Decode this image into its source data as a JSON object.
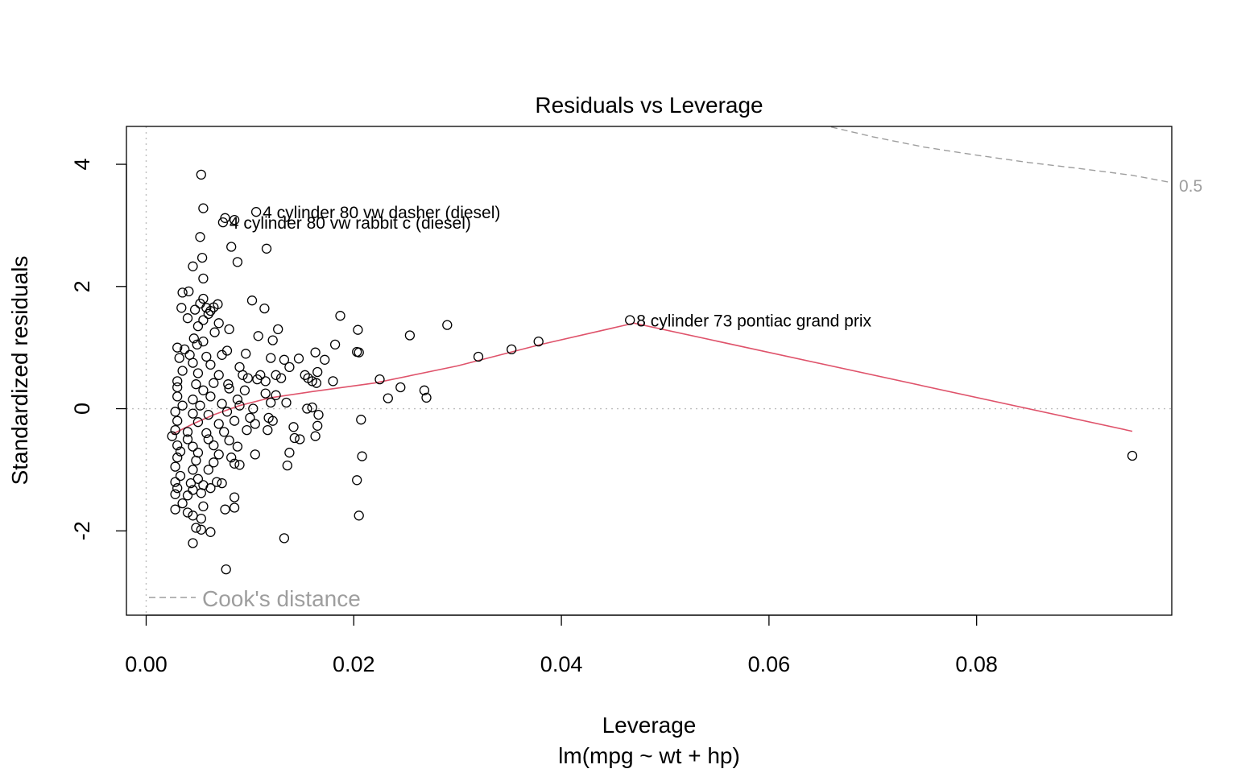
{
  "chart_data": {
    "type": "scatter",
    "title": "Residuals vs Leverage",
    "xlabel": "Leverage",
    "subtitle": "lm(mpg ~ wt + hp)",
    "ylabel": "Standardized residuals",
    "xlim": [
      -0.0019,
      0.0988
    ],
    "ylim": [
      -3.38,
      4.62
    ],
    "x_ticks": [
      0.0,
      0.02,
      0.04,
      0.06,
      0.08
    ],
    "x_tick_labels": [
      "0.00",
      "0.02",
      "0.04",
      "0.06",
      "0.08"
    ],
    "y_ticks": [
      -2,
      0,
      2,
      4
    ],
    "y_tick_labels": [
      "-2",
      "0",
      "2",
      "4"
    ],
    "points": [
      [
        0.0053,
        3.83
      ],
      [
        0.0055,
        3.28
      ],
      [
        0.0076,
        3.12
      ],
      [
        0.0074,
        3.05
      ],
      [
        0.0085,
        3.09
      ],
      [
        0.0106,
        3.22
      ],
      [
        0.0052,
        2.81
      ],
      [
        0.0082,
        2.65
      ],
      [
        0.0116,
        2.62
      ],
      [
        0.0054,
        2.47
      ],
      [
        0.0045,
        2.33
      ],
      [
        0.0088,
        2.4
      ],
      [
        0.0055,
        2.13
      ],
      [
        0.0035,
        1.9
      ],
      [
        0.0041,
        1.92
      ],
      [
        0.0055,
        1.8
      ],
      [
        0.0102,
        1.77
      ],
      [
        0.0052,
        1.72
      ],
      [
        0.0069,
        1.71
      ],
      [
        0.0034,
        1.65
      ],
      [
        0.0047,
        1.62
      ],
      [
        0.0058,
        1.65
      ],
      [
        0.0062,
        1.6
      ],
      [
        0.0065,
        1.66
      ],
      [
        0.006,
        1.55
      ],
      [
        0.0114,
        1.64
      ],
      [
        0.0187,
        1.52
      ],
      [
        0.004,
        1.48
      ],
      [
        0.0055,
        1.45
      ],
      [
        0.007,
        1.4
      ],
      [
        0.005,
        1.35
      ],
      [
        0.008,
        1.3
      ],
      [
        0.0127,
        1.3
      ],
      [
        0.0204,
        1.29
      ],
      [
        0.029,
        1.37
      ],
      [
        0.0254,
        1.2
      ],
      [
        0.0046,
        1.15
      ],
      [
        0.0055,
        1.1
      ],
      [
        0.0066,
        1.25
      ],
      [
        0.0108,
        1.19
      ],
      [
        0.0122,
        1.12
      ],
      [
        0.0049,
        1.05
      ],
      [
        0.003,
        1.0
      ],
      [
        0.0037,
        0.97
      ],
      [
        0.0078,
        0.95
      ],
      [
        0.0096,
        0.9
      ],
      [
        0.0042,
        0.88
      ],
      [
        0.0058,
        0.85
      ],
      [
        0.0073,
        0.88
      ],
      [
        0.012,
        0.83
      ],
      [
        0.0133,
        0.8
      ],
      [
        0.0147,
        0.82
      ],
      [
        0.0163,
        0.92
      ],
      [
        0.0172,
        0.8
      ],
      [
        0.0182,
        1.05
      ],
      [
        0.0203,
        0.93
      ],
      [
        0.0205,
        0.92
      ],
      [
        0.032,
        0.85
      ],
      [
        0.0352,
        0.97
      ],
      [
        0.0378,
        1.1
      ],
      [
        0.0466,
        1.45
      ],
      [
        0.0032,
        0.83
      ],
      [
        0.0045,
        0.75
      ],
      [
        0.0062,
        0.72
      ],
      [
        0.009,
        0.68
      ],
      [
        0.011,
        0.55
      ],
      [
        0.0138,
        0.68
      ],
      [
        0.0153,
        0.55
      ],
      [
        0.0165,
        0.6
      ],
      [
        0.0156,
        0.5
      ],
      [
        0.018,
        0.45
      ],
      [
        0.0035,
        0.62
      ],
      [
        0.005,
        0.58
      ],
      [
        0.007,
        0.55
      ],
      [
        0.0093,
        0.55
      ],
      [
        0.0098,
        0.5
      ],
      [
        0.0115,
        0.45
      ],
      [
        0.0125,
        0.55
      ],
      [
        0.016,
        0.45
      ],
      [
        0.0225,
        0.48
      ],
      [
        0.003,
        0.45
      ],
      [
        0.0048,
        0.4
      ],
      [
        0.0065,
        0.42
      ],
      [
        0.0079,
        0.4
      ],
      [
        0.0107,
        0.48
      ],
      [
        0.013,
        0.5
      ],
      [
        0.0164,
        0.42
      ],
      [
        0.0245,
        0.35
      ],
      [
        0.0268,
        0.3
      ],
      [
        0.027,
        0.18
      ],
      [
        0.0233,
        0.17
      ],
      [
        0.003,
        0.35
      ],
      [
        0.0055,
        0.3
      ],
      [
        0.008,
        0.33
      ],
      [
        0.0095,
        0.3
      ],
      [
        0.0115,
        0.25
      ],
      [
        0.0135,
        0.1
      ],
      [
        0.003,
        0.2
      ],
      [
        0.0045,
        0.15
      ],
      [
        0.0062,
        0.2
      ],
      [
        0.0088,
        0.15
      ],
      [
        0.0125,
        0.22
      ],
      [
        0.0035,
        0.05
      ],
      [
        0.0052,
        0.05
      ],
      [
        0.0073,
        0.08
      ],
      [
        0.009,
        0.05
      ],
      [
        0.0103,
        0.0
      ],
      [
        0.012,
        0.1
      ],
      [
        0.0155,
        0.0
      ],
      [
        0.016,
        0.02
      ],
      [
        0.0028,
        -0.05
      ],
      [
        0.0045,
        -0.08
      ],
      [
        0.006,
        -0.1
      ],
      [
        0.0078,
        -0.05
      ],
      [
        0.01,
        -0.15
      ],
      [
        0.0118,
        -0.15
      ],
      [
        0.0122,
        -0.2
      ],
      [
        0.0166,
        -0.1
      ],
      [
        0.0207,
        -0.18
      ],
      [
        0.003,
        -0.2
      ],
      [
        0.005,
        -0.22
      ],
      [
        0.007,
        -0.25
      ],
      [
        0.0085,
        -0.2
      ],
      [
        0.0105,
        -0.25
      ],
      [
        0.0142,
        -0.3
      ],
      [
        0.0165,
        -0.28
      ],
      [
        0.0028,
        -0.35
      ],
      [
        0.004,
        -0.38
      ],
      [
        0.0058,
        -0.4
      ],
      [
        0.0075,
        -0.38
      ],
      [
        0.0097,
        -0.35
      ],
      [
        0.0117,
        -0.35
      ],
      [
        0.0143,
        -0.48
      ],
      [
        0.0148,
        -0.5
      ],
      [
        0.0163,
        -0.45
      ],
      [
        0.0025,
        -0.45
      ],
      [
        0.004,
        -0.5
      ],
      [
        0.006,
        -0.5
      ],
      [
        0.008,
        -0.52
      ],
      [
        0.003,
        -0.6
      ],
      [
        0.0045,
        -0.62
      ],
      [
        0.0065,
        -0.6
      ],
      [
        0.0088,
        -0.62
      ],
      [
        0.0138,
        -0.72
      ],
      [
        0.0033,
        -0.7
      ],
      [
        0.005,
        -0.72
      ],
      [
        0.007,
        -0.75
      ],
      [
        0.0082,
        -0.8
      ],
      [
        0.0105,
        -0.75
      ],
      [
        0.0208,
        -0.78
      ],
      [
        0.003,
        -0.8
      ],
      [
        0.0048,
        -0.85
      ],
      [
        0.0065,
        -0.88
      ],
      [
        0.0085,
        -0.9
      ],
      [
        0.009,
        -0.92
      ],
      [
        0.0136,
        -0.93
      ],
      [
        0.0028,
        -0.95
      ],
      [
        0.0045,
        -1.0
      ],
      [
        0.006,
        -1.0
      ],
      [
        0.0033,
        -1.1
      ],
      [
        0.005,
        -1.15
      ],
      [
        0.0068,
        -1.2
      ],
      [
        0.0028,
        -1.2
      ],
      [
        0.0043,
        -1.22
      ],
      [
        0.0055,
        -1.25
      ],
      [
        0.0073,
        -1.22
      ],
      [
        0.003,
        -1.3
      ],
      [
        0.0045,
        -1.33
      ],
      [
        0.0062,
        -1.3
      ],
      [
        0.0028,
        -1.4
      ],
      [
        0.004,
        -1.42
      ],
      [
        0.0053,
        -1.38
      ],
      [
        0.0085,
        -1.45
      ],
      [
        0.0203,
        -1.17
      ],
      [
        0.0035,
        -1.55
      ],
      [
        0.0055,
        -1.6
      ],
      [
        0.0028,
        -1.65
      ],
      [
        0.004,
        -1.7
      ],
      [
        0.0076,
        -1.65
      ],
      [
        0.0085,
        -1.62
      ],
      [
        0.0045,
        -1.75
      ],
      [
        0.0053,
        -1.8
      ],
      [
        0.0205,
        -1.75
      ],
      [
        0.0048,
        -1.95
      ],
      [
        0.0053,
        -1.98
      ],
      [
        0.0062,
        -2.02
      ],
      [
        0.0133,
        -2.12
      ],
      [
        0.0045,
        -2.2
      ],
      [
        0.0077,
        -2.63
      ],
      [
        0.095,
        -0.77
      ]
    ],
    "labeled_points": [
      {
        "x": 0.0106,
        "y": 3.22,
        "label": "4 cylinder 80 vw dasher (diesel)"
      },
      {
        "x": 0.0074,
        "y": 3.05,
        "label": "4 cylinder 80 vw rabbit c (diesel)"
      },
      {
        "x": 0.0466,
        "y": 1.45,
        "label": "8 cylinder 73 pontiac grand prix"
      }
    ],
    "smooth_line": {
      "color": "#DF536B",
      "x": [
        0.0025,
        0.0045,
        0.0065,
        0.009,
        0.012,
        0.016,
        0.022,
        0.03,
        0.038,
        0.047,
        0.095
      ],
      "y": [
        -0.42,
        -0.25,
        -0.1,
        0.05,
        0.18,
        0.28,
        0.42,
        0.7,
        1.05,
        1.4,
        -0.37
      ]
    },
    "cooks_distance": {
      "legend": "Cook's distance",
      "level_label": "0.5",
      "color": "#9e9e9e",
      "x": [
        0.065,
        0.07,
        0.075,
        0.08,
        0.085,
        0.09,
        0.095,
        0.0988
      ],
      "y": [
        4.65,
        4.45,
        4.28,
        4.15,
        4.03,
        3.93,
        3.82,
        3.7
      ]
    },
    "reference_lines": {
      "h": 0,
      "v": 0,
      "style": "dotted",
      "color": "#bebebe"
    },
    "grid": false
  }
}
